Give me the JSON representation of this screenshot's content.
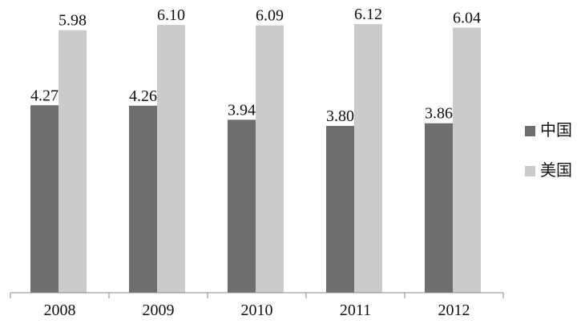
{
  "chart_data": {
    "type": "bar",
    "categories": [
      "2008",
      "2009",
      "2010",
      "2011",
      "2012"
    ],
    "series": [
      {
        "name": "中国",
        "values": [
          4.27,
          4.26,
          3.94,
          3.8,
          3.86
        ],
        "color": "#6e6e6e"
      },
      {
        "name": "美国",
        "values": [
          5.98,
          6.1,
          6.09,
          6.12,
          6.04
        ],
        "color": "#cbcbcb"
      }
    ],
    "value_labels": [
      [
        "4.27",
        "4.26",
        "3.94",
        "3.80",
        "3.86"
      ],
      [
        "5.98",
        "6.10",
        "6.09",
        "6.12",
        "6.04"
      ]
    ],
    "title": "",
    "xlabel": "",
    "ylabel": "",
    "ylim": [
      0,
      6.4
    ],
    "grid": false,
    "legend_position": "right"
  }
}
